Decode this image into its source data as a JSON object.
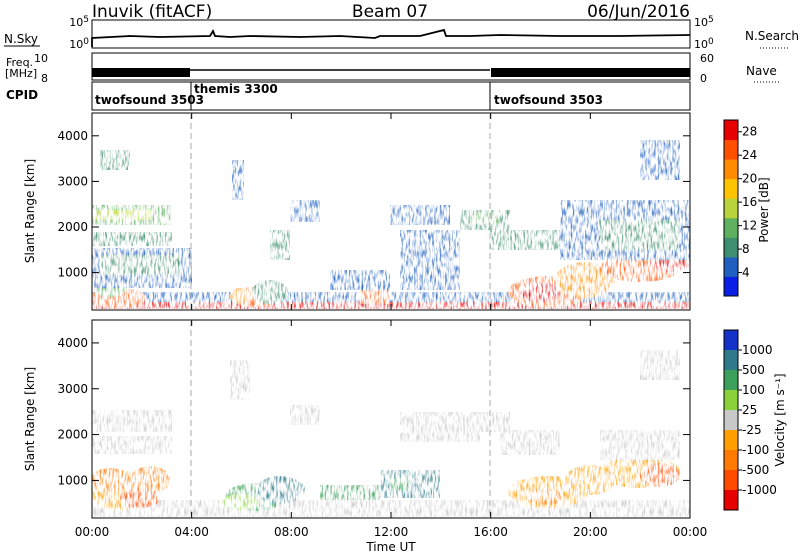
{
  "header": {
    "station": "Inuvik (fitACF)",
    "beam": "Beam 07",
    "date": "06/Jun/2016"
  },
  "summary_labels": {
    "nsky": "N.Sky",
    "nsearch": "N.Search",
    "freq_top": "Freq.",
    "freq_unit": "[MHz]",
    "nave": "Nave",
    "cpid": "CPID",
    "nsky_ticks": [
      "10^5",
      "10^0"
    ],
    "nsearch_ticks": [
      "10^5",
      "10^0"
    ],
    "freq_ticks": [
      "10",
      "8"
    ],
    "nave_ticks": [
      "60",
      "0"
    ]
  },
  "cpid_segments": [
    {
      "label": "twofsound 3503",
      "start_h": 0,
      "end_h": 4
    },
    {
      "label": "themis 3300",
      "start_h": 4,
      "end_h": 16
    },
    {
      "label": "twofsound 3503",
      "start_h": 16,
      "end_h": 24
    }
  ],
  "chart_data": [
    {
      "type": "heatmap",
      "name": "power-panel",
      "xlabel": "",
      "ylabel": "Slant Range [km]",
      "xlim": [
        0,
        24
      ],
      "ylim": [
        180,
        4500
      ],
      "yticks": [
        1000,
        2000,
        3000,
        4000
      ],
      "colorbar": {
        "label": "Power [dB]",
        "ticks": [
          4,
          8,
          12,
          16,
          20,
          24,
          28
        ],
        "range": [
          0,
          30
        ],
        "colors": [
          "#0a1ee6",
          "#1f5fbf",
          "#3f8e6f",
          "#5fb05f",
          "#b8d43a",
          "#ffc400",
          "#ff8c00",
          "#ff5000",
          "#e60000"
        ]
      }
    },
    {
      "type": "heatmap",
      "name": "velocity-panel",
      "xlabel": "Time UT",
      "ylabel": "Slant Range [km]",
      "xlim": [
        0,
        24
      ],
      "ylim": [
        180,
        4500
      ],
      "yticks": [
        1000,
        2000,
        3000,
        4000
      ],
      "xticks": [
        "00:00",
        "04:00",
        "08:00",
        "12:00",
        "16:00",
        "20:00",
        "00:00"
      ],
      "colorbar": {
        "label": "Velocity [m s⁻¹]",
        "ticks": [
          "1000",
          "500",
          "100",
          "25",
          "-25",
          "-100",
          "-500",
          "-1000"
        ],
        "colors": [
          "#1432c8",
          "#2e7a8a",
          "#3aa05a",
          "#8ad23a",
          "#c8c8c8",
          "#ffa000",
          "#ff7a00",
          "#ff4a00",
          "#e60000"
        ]
      }
    }
  ]
}
